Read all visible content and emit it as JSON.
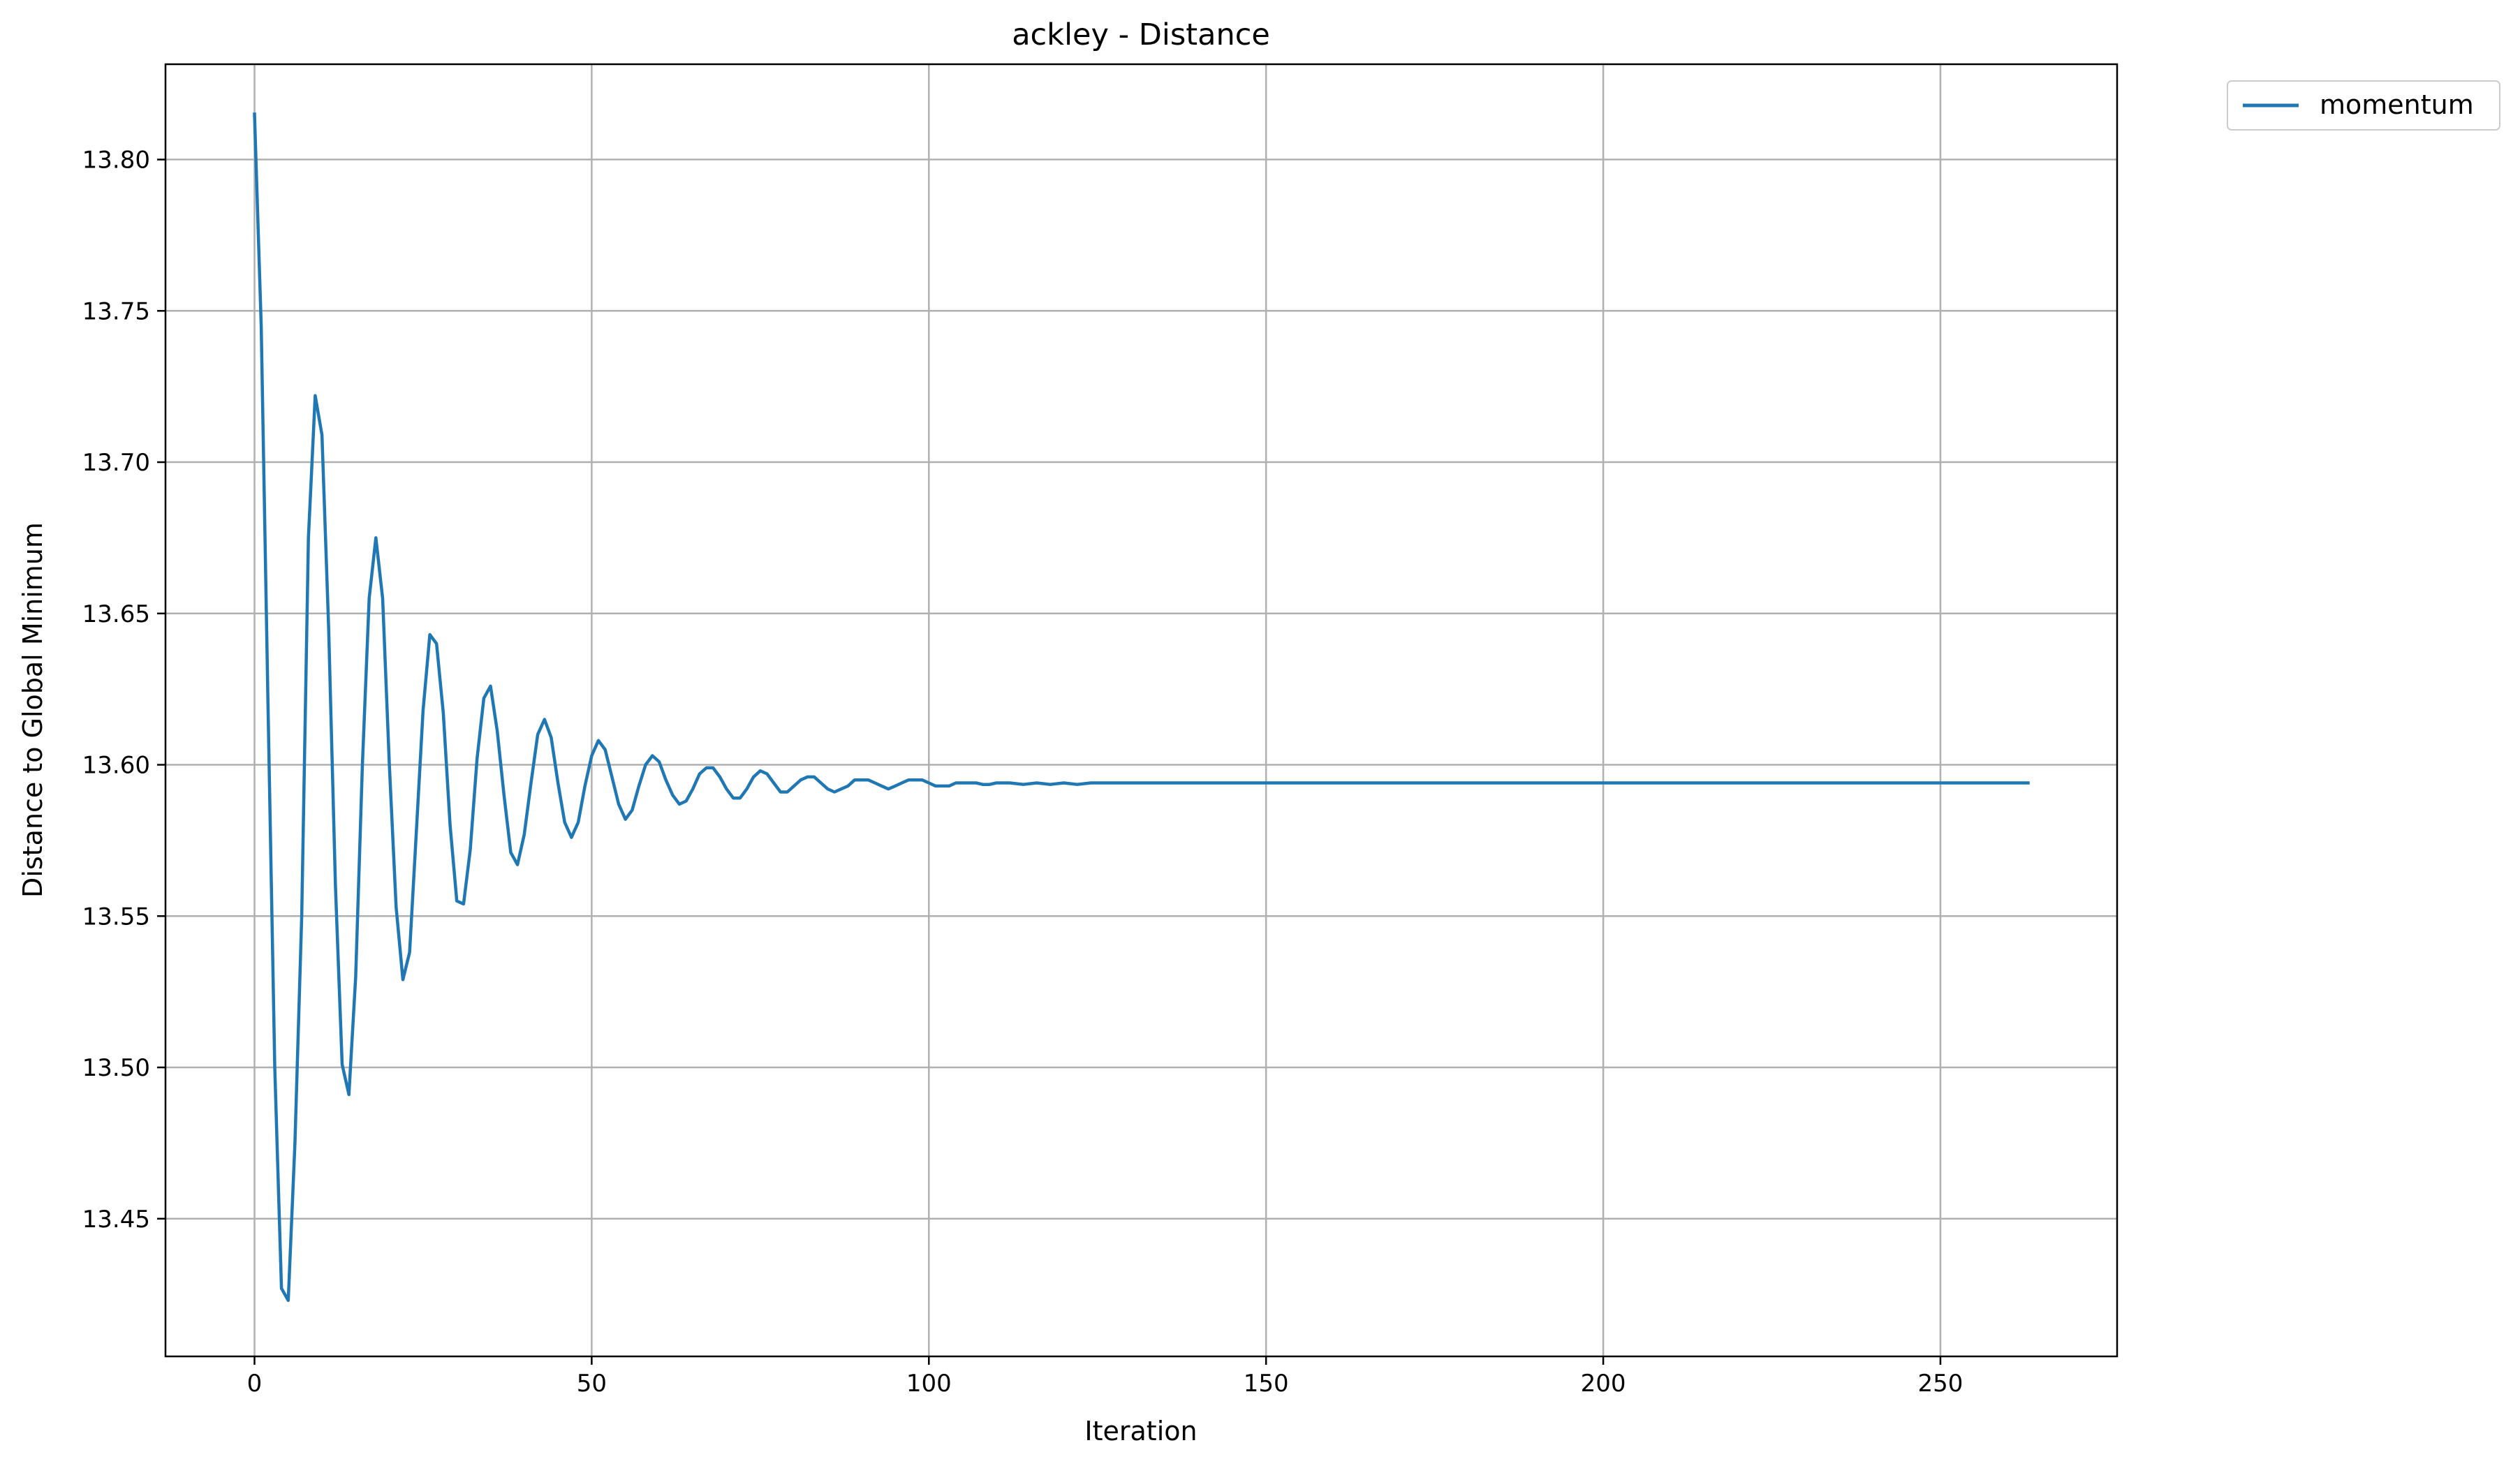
{
  "chart_data": {
    "type": "line",
    "title": "ackley - Distance",
    "xlabel": "Iteration",
    "ylabel": "Distance to Global Minimum",
    "xlim": [
      -13.2,
      276.2
    ],
    "ylim": [
      13.4045,
      13.8315
    ],
    "xticks": [
      0,
      50,
      100,
      150,
      200,
      250
    ],
    "yticks": [
      13.45,
      13.5,
      13.55,
      13.6,
      13.65,
      13.7,
      13.75,
      13.8
    ],
    "xtick_labels": [
      "0",
      "50",
      "100",
      "150",
      "200",
      "250"
    ],
    "ytick_labels": [
      "13.45",
      "13.50",
      "13.55",
      "13.60",
      "13.65",
      "13.70",
      "13.75",
      "13.80"
    ],
    "grid": true,
    "legend_position": "outside-top-right",
    "series": [
      {
        "name": "momentum",
        "color": "#1f77b4",
        "x": [
          0,
          1,
          2,
          3,
          4,
          5,
          6,
          7,
          8,
          9,
          10,
          11,
          12,
          13,
          14,
          15,
          16,
          17,
          18,
          19,
          20,
          21,
          22,
          23,
          24,
          25,
          26,
          27,
          28,
          29,
          30,
          31,
          32,
          33,
          34,
          35,
          36,
          37,
          38,
          39,
          40,
          41,
          42,
          43,
          44,
          45,
          46,
          47,
          48,
          49,
          50,
          51,
          52,
          53,
          54,
          55,
          56,
          57,
          58,
          59,
          60,
          61,
          62,
          63,
          64,
          65,
          66,
          67,
          68,
          69,
          70,
          71,
          72,
          73,
          74,
          75,
          76,
          77,
          78,
          79,
          80,
          81,
          82,
          83,
          84,
          85,
          86,
          87,
          88,
          89,
          90,
          91,
          92,
          93,
          94,
          95,
          96,
          97,
          98,
          99,
          100,
          101,
          102,
          103,
          104,
          105,
          106,
          107,
          108,
          109,
          110,
          112,
          114,
          116,
          118,
          120,
          122,
          124,
          126,
          128,
          130,
          132,
          134,
          136,
          138,
          140,
          142,
          144,
          146,
          148,
          150,
          155,
          160,
          165,
          170,
          180,
          190,
          200,
          210,
          220,
          230,
          240,
          250,
          263
        ],
        "values": [
          13.815,
          13.745,
          13.62,
          13.5,
          13.427,
          13.423,
          13.475,
          13.55,
          13.675,
          13.722,
          13.709,
          13.645,
          13.56,
          13.501,
          13.491,
          13.53,
          13.6,
          13.655,
          13.675,
          13.655,
          13.6,
          13.553,
          13.529,
          13.538,
          13.578,
          13.618,
          13.643,
          13.64,
          13.617,
          13.58,
          13.555,
          13.554,
          13.572,
          13.602,
          13.622,
          13.626,
          13.611,
          13.59,
          13.571,
          13.567,
          13.577,
          13.594,
          13.61,
          13.615,
          13.609,
          13.594,
          13.581,
          13.576,
          13.581,
          13.593,
          13.603,
          13.608,
          13.605,
          13.596,
          13.587,
          13.582,
          13.585,
          13.593,
          13.6,
          13.603,
          13.601,
          13.595,
          13.59,
          13.587,
          13.588,
          13.592,
          13.597,
          13.599,
          13.599,
          13.596,
          13.592,
          13.589,
          13.589,
          13.592,
          13.596,
          13.598,
          13.597,
          13.594,
          13.591,
          13.591,
          13.593,
          13.595,
          13.596,
          13.596,
          13.594,
          13.592,
          13.591,
          13.592,
          13.593,
          13.595,
          13.595,
          13.595,
          13.594,
          13.593,
          13.592,
          13.593,
          13.594,
          13.595,
          13.595,
          13.595,
          13.594,
          13.593,
          13.593,
          13.593,
          13.594,
          13.594,
          13.594,
          13.594,
          13.5935,
          13.5935,
          13.594,
          13.594,
          13.5935,
          13.594,
          13.5935,
          13.594,
          13.5935,
          13.594,
          13.594,
          13.594,
          13.594,
          13.594,
          13.594,
          13.594,
          13.594,
          13.594,
          13.594,
          13.594,
          13.594,
          13.594,
          13.594,
          13.594,
          13.594,
          13.594,
          13.594,
          13.594,
          13.594,
          13.594,
          13.594,
          13.594,
          13.594,
          13.594,
          13.594,
          13.594
        ]
      }
    ]
  }
}
